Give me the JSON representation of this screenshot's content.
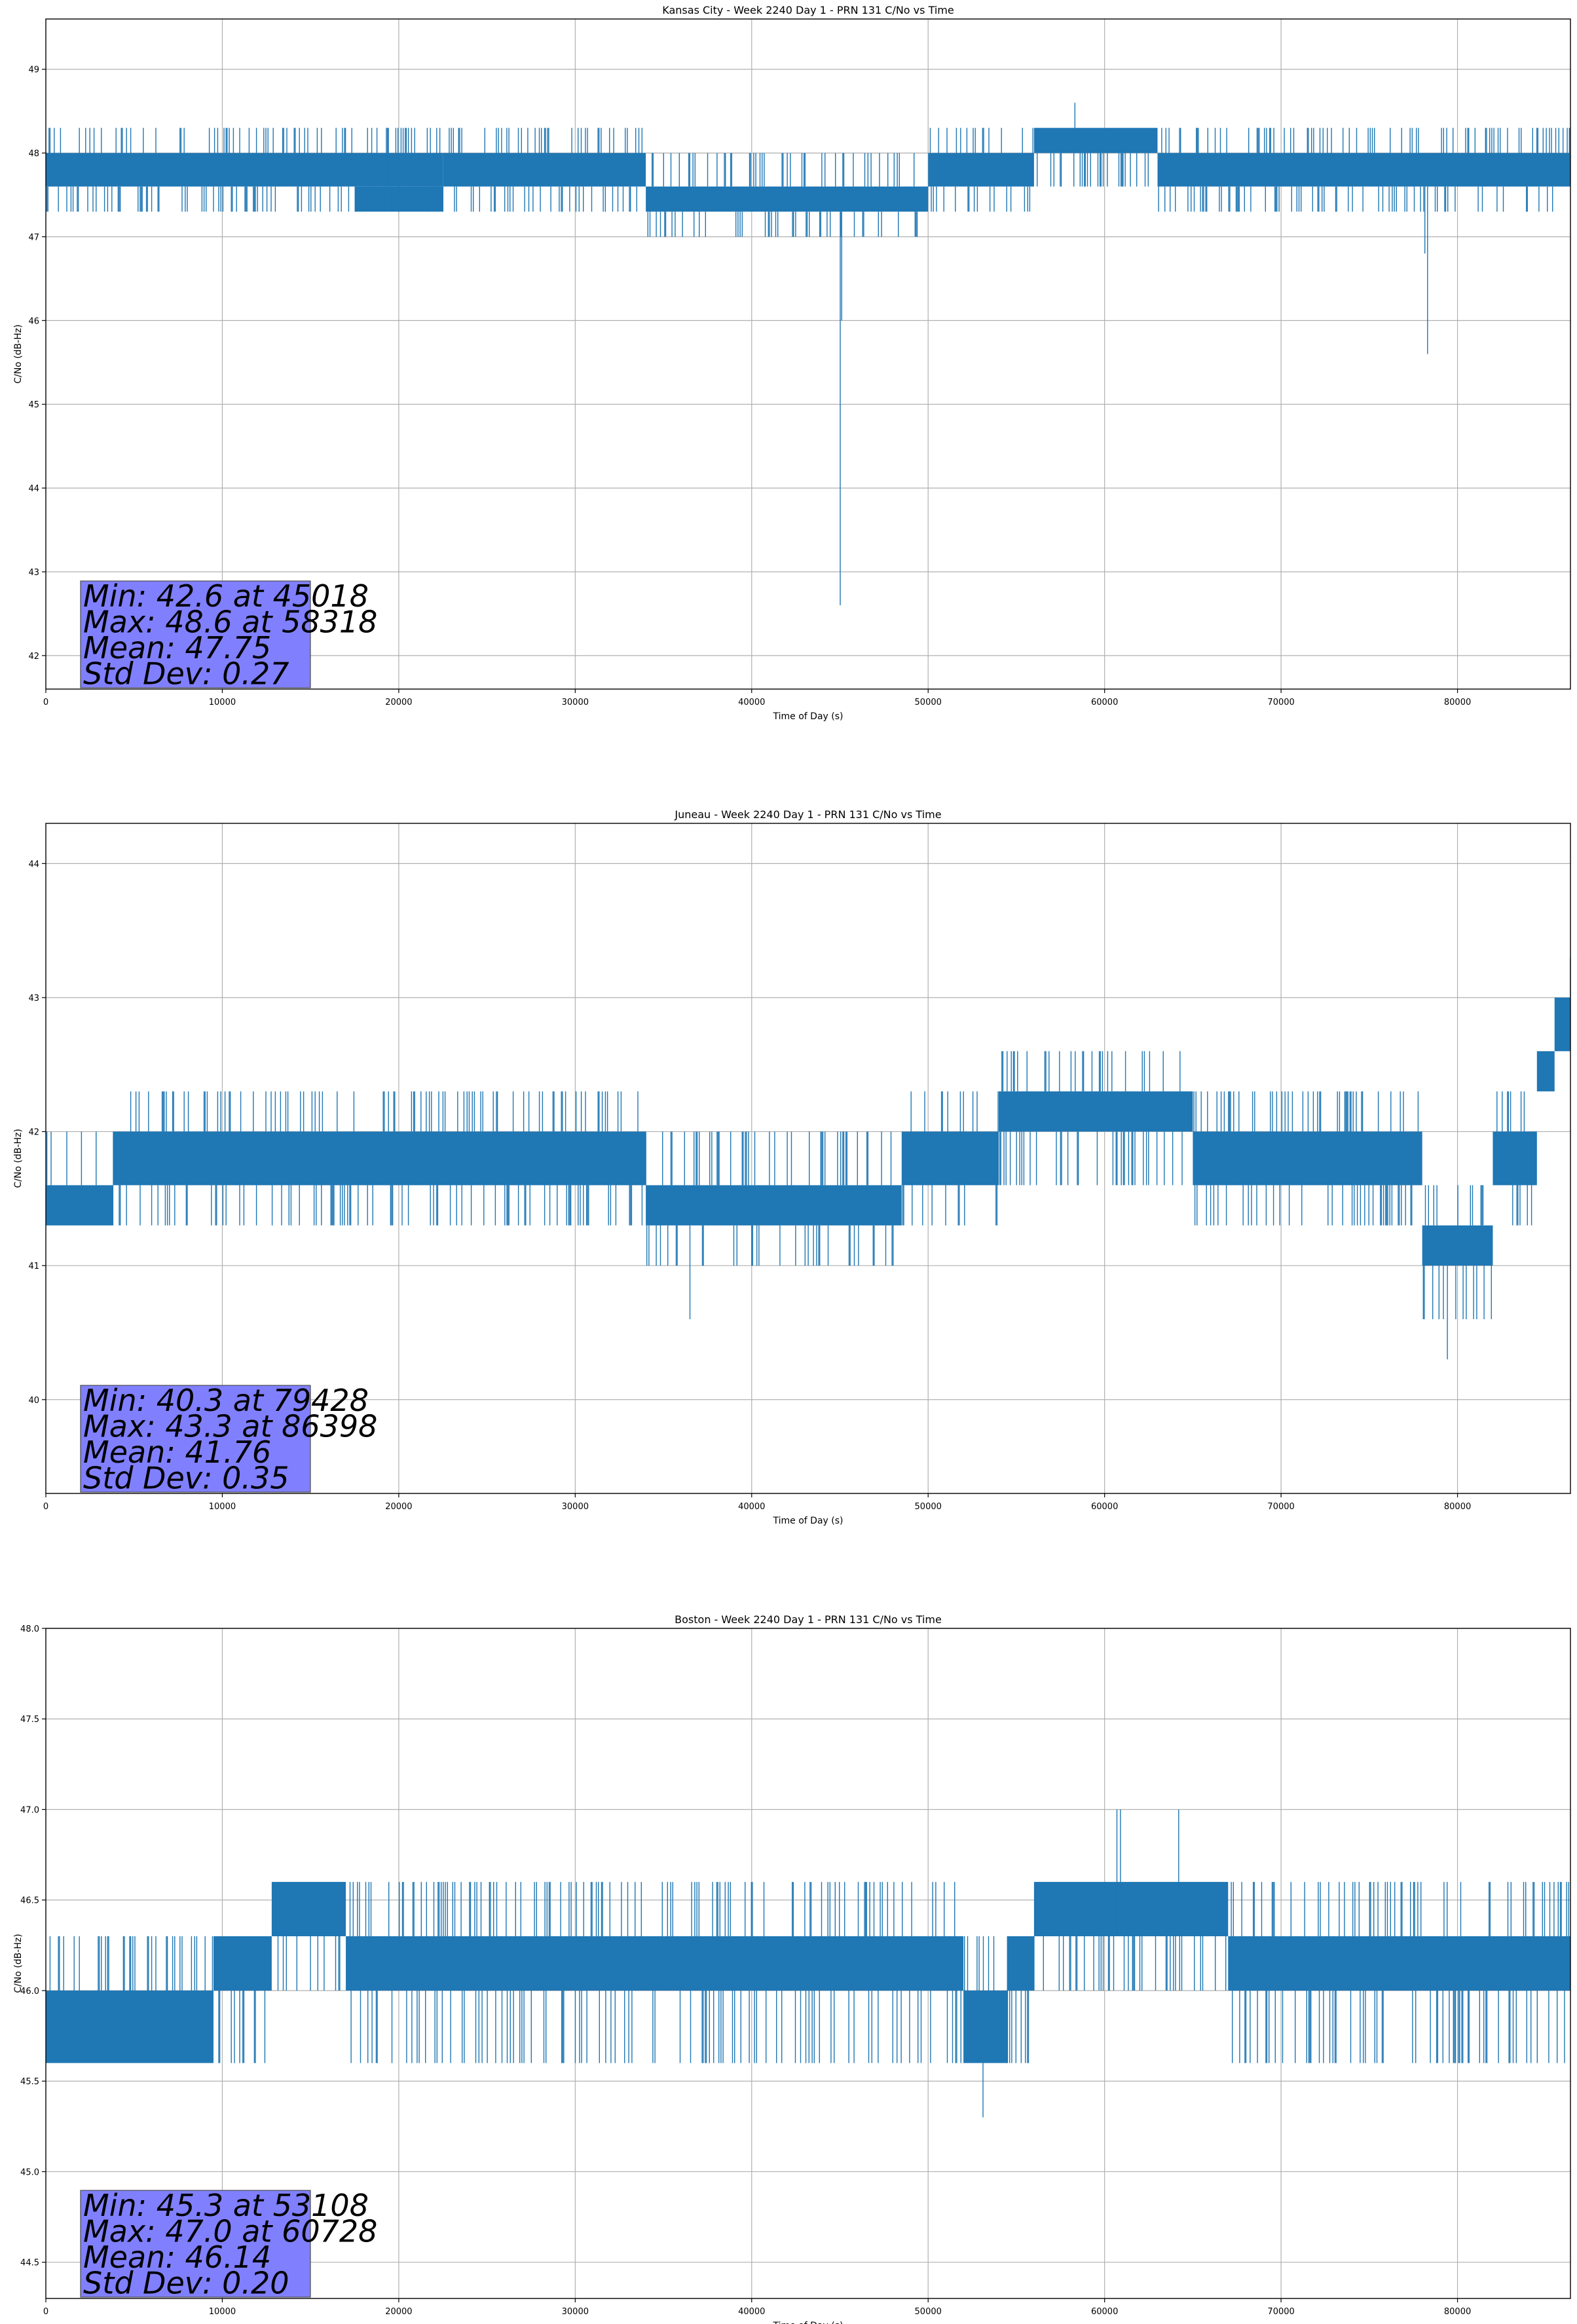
{
  "colors": {
    "series": "#1f77b4",
    "grid": "#b0b0b0",
    "stats_box": "#8080ff",
    "stats_box_edge": "#4c4c4c"
  },
  "chart_data": [
    {
      "type": "line",
      "title": "Kansas City - Week 2240 Day 1 - PRN 131 C/No vs Time",
      "xlabel": "Time of Day (s)",
      "ylabel": "C/No (dB-Hz)",
      "xlim": [
        0,
        86400
      ],
      "ylim": [
        41.6,
        49.6
      ],
      "xticks": [
        0,
        10000,
        20000,
        30000,
        40000,
        50000,
        60000,
        70000,
        80000
      ],
      "yticks": [
        42,
        43,
        44,
        45,
        46,
        47,
        48,
        49
      ],
      "ytick_labels": [
        "42",
        "43",
        "44",
        "45",
        "46",
        "47",
        "48",
        "49"
      ],
      "grid": true,
      "stats": [
        "Min: 42.6 at 45018",
        "Max: 48.6 at 58318",
        "Mean: 47.75",
        "Std Dev: 0.27"
      ],
      "series": [
        {
          "segments": [
            {
              "x": [
                0,
                22500
              ],
              "base": [
                47.6,
                48.0
              ],
              "spike_lo": 47.3,
              "spike_hi": 48.3,
              "density": 0.35
            },
            {
              "x": [
                17500,
                22500
              ],
              "base": [
                47.3,
                47.6
              ],
              "spike_lo": 47.3,
              "spike_hi": 48.0,
              "density": 0.25
            },
            {
              "x": [
                22500,
                34000
              ],
              "base": [
                47.6,
                48.0
              ],
              "spike_lo": 47.3,
              "spike_hi": 48.3,
              "density": 0.35
            },
            {
              "x": [
                34000,
                50000
              ],
              "base": [
                47.3,
                47.6
              ],
              "spike_lo": 47.0,
              "spike_hi": 48.0,
              "density": 0.3
            },
            {
              "x": [
                50000,
                56000
              ],
              "base": [
                47.6,
                48.0
              ],
              "spike_lo": 47.3,
              "spike_hi": 48.3,
              "density": 0.3
            },
            {
              "x": [
                56000,
                63000
              ],
              "base": [
                48.0,
                48.3
              ],
              "spike_lo": 47.6,
              "spike_hi": 48.3,
              "density": 0.35
            },
            {
              "x": [
                63000,
                86400
              ],
              "base": [
                47.6,
                48.0
              ],
              "spike_lo": 47.3,
              "spike_hi": 48.3,
              "density": 0.35
            }
          ],
          "events": [
            {
              "x": 45018,
              "y": 42.6
            },
            {
              "x": 45100,
              "y": 46.0
            },
            {
              "x": 58318,
              "y": 48.6
            },
            {
              "x": 78300,
              "y": 45.6
            },
            {
              "x": 78150,
              "y": 46.8
            }
          ]
        }
      ]
    },
    {
      "type": "line",
      "title": "Juneau - Week 2240 Day 1 - PRN 131 C/No vs Time",
      "xlabel": "Time of Day (s)",
      "ylabel": "C/No (dB-Hz)",
      "xlim": [
        0,
        86400
      ],
      "ylim": [
        39.3,
        44.3
      ],
      "xticks": [
        0,
        10000,
        20000,
        30000,
        40000,
        50000,
        60000,
        70000,
        80000
      ],
      "yticks": [
        40,
        41,
        42,
        43,
        44
      ],
      "ytick_labels": [
        "40",
        "41",
        "42",
        "43",
        "44"
      ],
      "grid": true,
      "stats": [
        "Min: 40.3 at 79428",
        "Max: 43.3 at 86398",
        "Mean: 41.76",
        "Std Dev: 0.35"
      ],
      "series": [
        {
          "segments": [
            {
              "x": [
                0,
                3800
              ],
              "base": [
                41.3,
                41.6
              ],
              "spike_lo": 41.3,
              "spike_hi": 42.0,
              "density": 0.3
            },
            {
              "x": [
                3800,
                34000
              ],
              "base": [
                41.6,
                42.0
              ],
              "spike_lo": 41.3,
              "spike_hi": 42.3,
              "density": 0.35
            },
            {
              "x": [
                34000,
                48500
              ],
              "base": [
                41.3,
                41.6
              ],
              "spike_lo": 41.0,
              "spike_hi": 42.0,
              "density": 0.3
            },
            {
              "x": [
                48500,
                54000
              ],
              "base": [
                41.6,
                42.0
              ],
              "spike_lo": 41.3,
              "spike_hi": 42.3,
              "density": 0.35
            },
            {
              "x": [
                54000,
                65000
              ],
              "base": [
                42.0,
                42.3
              ],
              "spike_lo": 41.6,
              "spike_hi": 42.6,
              "density": 0.35
            },
            {
              "x": [
                65000,
                78000
              ],
              "base": [
                41.6,
                42.0
              ],
              "spike_lo": 41.3,
              "spike_hi": 42.3,
              "density": 0.35
            },
            {
              "x": [
                78000,
                82000
              ],
              "base": [
                41.0,
                41.3
              ],
              "spike_lo": 40.6,
              "spike_hi": 41.6,
              "density": 0.35
            },
            {
              "x": [
                82000,
                84500
              ],
              "base": [
                41.6,
                42.0
              ],
              "spike_lo": 41.3,
              "spike_hi": 42.3,
              "density": 0.35
            },
            {
              "x": [
                84500,
                85500
              ],
              "base": [
                42.3,
                42.6
              ],
              "spike_lo": 42.3,
              "spike_hi": 42.6,
              "density": 0.3
            },
            {
              "x": [
                85500,
                86400
              ],
              "base": [
                42.6,
                43.0
              ],
              "spike_lo": 42.6,
              "spike_hi": 43.0,
              "density": 0.3
            }
          ],
          "events": [
            {
              "x": 36500,
              "y": 40.6
            },
            {
              "x": 79200,
              "y": 40.6
            },
            {
              "x": 79428,
              "y": 40.3
            },
            {
              "x": 86398,
              "y": 43.3
            }
          ]
        }
      ]
    },
    {
      "type": "line",
      "title": "Boston - Week 2240 Day 1 - PRN 131 C/No vs Time",
      "xlabel": "Time of Day (s)",
      "ylabel": "C/No (dB-Hz)",
      "xlim": [
        0,
        86400
      ],
      "ylim": [
        44.3,
        48.0
      ],
      "xticks": [
        0,
        10000,
        20000,
        30000,
        40000,
        50000,
        60000,
        70000,
        80000
      ],
      "yticks": [
        44.5,
        45.0,
        45.5,
        46.0,
        46.5,
        47.0,
        47.5,
        48.0
      ],
      "ytick_labels": [
        "44.5",
        "45.0",
        "45.5",
        "46.0",
        "46.5",
        "47.0",
        "47.5",
        "48.0"
      ],
      "grid": true,
      "stats": [
        "Min: 45.3 at 53108",
        "Max: 47.0 at 60728",
        "Mean: 46.14",
        "Std Dev: 0.20"
      ],
      "series": [
        {
          "segments": [
            {
              "x": [
                0,
                9500
              ],
              "base": [
                45.6,
                46.0
              ],
              "spike_lo": 45.6,
              "spike_hi": 46.3,
              "density": 0.35
            },
            {
              "x": [
                9500,
                12800
              ],
              "base": [
                46.0,
                46.3
              ],
              "spike_lo": 45.6,
              "spike_hi": 46.3,
              "density": 0.3
            },
            {
              "x": [
                12800,
                17000
              ],
              "base": [
                46.3,
                46.6
              ],
              "spike_lo": 46.0,
              "spike_hi": 46.6,
              "density": 0.35
            },
            {
              "x": [
                17000,
                52000
              ],
              "base": [
                46.0,
                46.3
              ],
              "spike_lo": 45.6,
              "spike_hi": 46.6,
              "density": 0.35
            },
            {
              "x": [
                52000,
                54500
              ],
              "base": [
                45.6,
                46.0
              ],
              "spike_lo": 45.6,
              "spike_hi": 46.3,
              "density": 0.35
            },
            {
              "x": [
                54500,
                56000
              ],
              "base": [
                46.0,
                46.3
              ],
              "spike_lo": 45.6,
              "spike_hi": 46.3,
              "density": 0.3
            },
            {
              "x": [
                56000,
                67000
              ],
              "base": [
                46.3,
                46.6
              ],
              "spike_lo": 46.0,
              "spike_hi": 46.6,
              "density": 0.35
            },
            {
              "x": [
                67000,
                86400
              ],
              "base": [
                46.0,
                46.3
              ],
              "spike_lo": 45.6,
              "spike_hi": 46.6,
              "density": 0.35
            }
          ],
          "events": [
            {
              "x": 53108,
              "y": 45.3
            },
            {
              "x": 60700,
              "y": 47.0
            },
            {
              "x": 60900,
              "y": 47.0
            },
            {
              "x": 64200,
              "y": 47.0
            }
          ]
        }
      ]
    }
  ]
}
